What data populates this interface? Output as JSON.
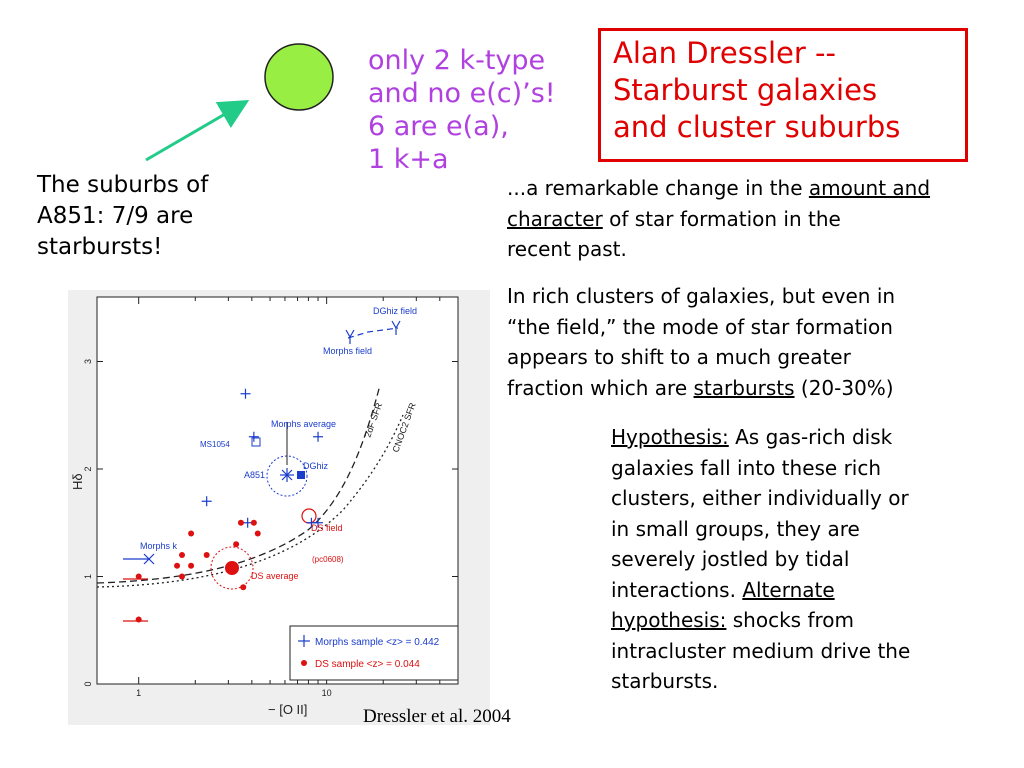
{
  "title": {
    "line1": "Alan Dressler  --",
    "line2": "Starburst galaxies",
    "line3": "and cluster suburbs"
  },
  "callout": {
    "line1": "only 2 k-type",
    "line2": "and no e(c)’s!",
    "line3": "6 are e(a),",
    "line4": "1 k+a"
  },
  "suburbs_note": {
    "line1": "The suburbs of",
    "line2": "A851: 7/9 are",
    "line3": "starbursts!"
  },
  "para1": {
    "l1_pre": "...a remarkable change in the ",
    "l1_u": "amount and",
    "l2_u": "character",
    "l2_post": " of star formation in the",
    "l3": "recent past."
  },
  "para2": {
    "l1": "In rich clusters of galaxies, but even in",
    "l2": "“the field,” the mode of star formation",
    "l3": "appears to shift to a much greater",
    "l4_pre": "fraction which are ",
    "l4_u": "starbursts",
    "l4_post": " (20-30%)"
  },
  "para3": {
    "l1_u": "Hypothesis:",
    "l1_post": " As gas-rich disk",
    "l2": "galaxies fall into these rich",
    "l3": "clusters, either individually or",
    "l4": "in small groups, they are",
    "l5": "severely jostled by tidal",
    "l6_pre": "interactions. ",
    "l6_u": "Alternate",
    "l7_u": "hypothesis:",
    "l7_post": " shocks from",
    "l8": "intracluster medium drive the",
    "l9": "starbursts."
  },
  "citation": "Dressler et al. 2004",
  "colors": {
    "title_red": "#e00000",
    "callout_purple": "#b040e0",
    "circle_green": "#99ee44",
    "arrow_teal": "#22cc88",
    "plot_blue": "#1a3ccc",
    "plot_red": "#dd1111"
  },
  "chart_data": {
    "type": "scatter",
    "xscale": "log",
    "xlabel": "− [O II]",
    "ylabel": "Hδ",
    "xlim": [
      0.6,
      50
    ],
    "ylim": [
      0,
      3.6
    ],
    "x_ticks": [
      "1",
      "10"
    ],
    "y_ticks": [
      "0",
      "1",
      "2",
      "3"
    ],
    "annotations": [
      "DGhiz field",
      "Morphs field",
      "Morphs average",
      "MS1054",
      "A851",
      "DGhiz",
      "DS field",
      "(pc0608)",
      "DS average",
      "Morphs k",
      "2dF SFR",
      "CNOC2 SFR"
    ],
    "legend": [
      "Morphs sample <z> = 0.442",
      "DS sample <z> = 0.044"
    ],
    "legend_position": "bottom-right",
    "series": [
      {
        "name": "Morphs sample <z> = 0.442",
        "marker": "plus",
        "color": "#1a3ccc",
        "points": [
          [
            3.7,
            2.7
          ],
          [
            4.1,
            2.3
          ],
          [
            9.0,
            2.3
          ],
          [
            2.3,
            1.7
          ],
          [
            3.8,
            1.5
          ],
          [
            8.3,
            1.5
          ],
          [
            9.0,
            1.5
          ]
        ]
      },
      {
        "name": "DS sample <z> = 0.044",
        "marker": "dot",
        "color": "#dd1111",
        "points": [
          [
            3.5,
            1.5
          ],
          [
            4.1,
            1.5
          ],
          [
            4.3,
            1.4
          ],
          [
            1.9,
            1.4
          ],
          [
            3.3,
            1.3
          ],
          [
            1.7,
            1.2
          ],
          [
            2.3,
            1.2
          ],
          [
            1.6,
            1.1
          ],
          [
            1.9,
            1.1
          ],
          [
            1.7,
            1.0
          ],
          [
            1.0,
            1.0
          ],
          [
            3.6,
            0.9
          ],
          [
            1.0,
            0.6
          ]
        ]
      }
    ]
  }
}
